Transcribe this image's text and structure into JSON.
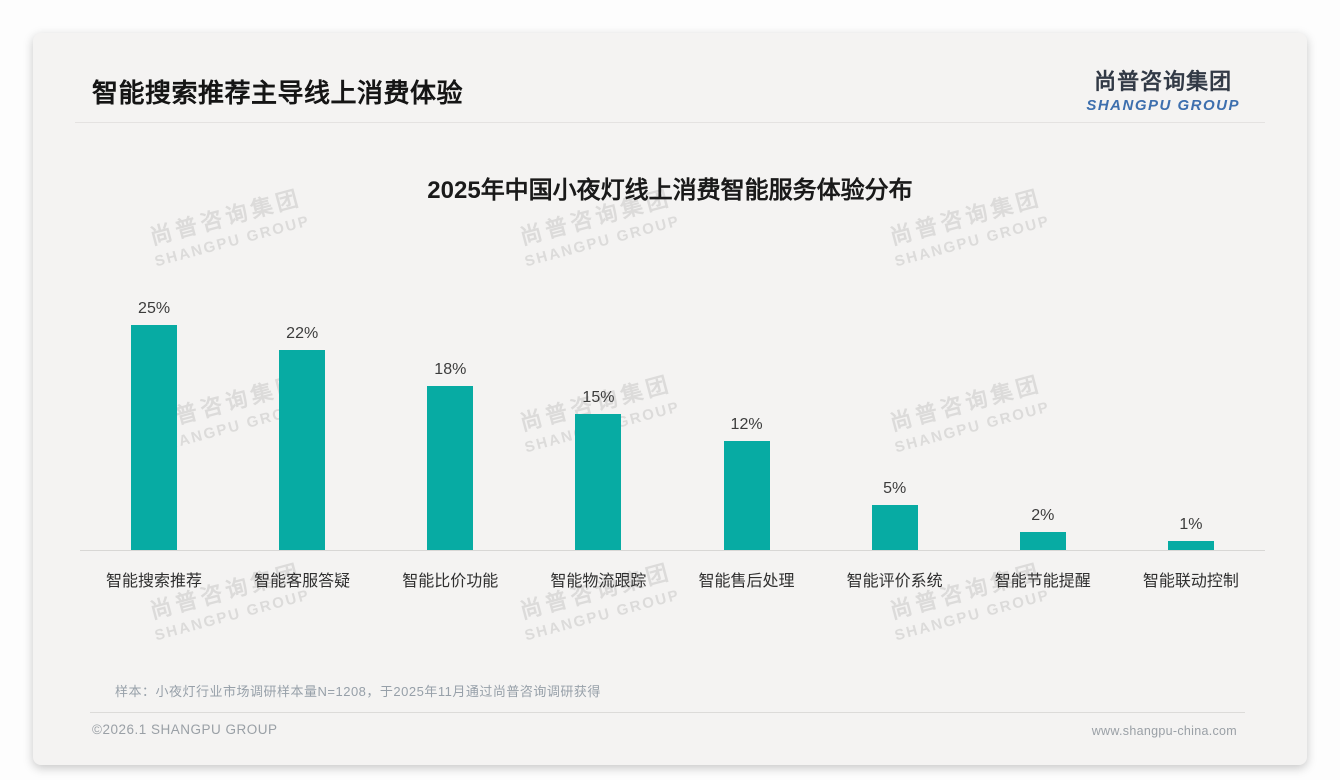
{
  "page": {
    "header": {
      "title": "智能搜索推荐主导线上消费体验"
    },
    "logo": {
      "cn": "尚普咨询集团",
      "en": "SHANGPU GROUP",
      "cn_color": "#323a46",
      "en_color": "#3d6fae"
    },
    "watermark": {
      "line1": "尚普咨询集团",
      "line2": "SHANGPU GROUP"
    },
    "footer": {
      "note": "样本：小夜灯行业市场调研样本量N=1208，于2025年11月通过尚普咨询调研获得",
      "copyright": "©2026.1 SHANGPU GROUP",
      "website": "www.shangpu-china.com"
    }
  },
  "chart_data": {
    "type": "bar",
    "title": "2025年中国小夜灯线上消费智能服务体验分布",
    "categories": [
      "智能搜索推荐",
      "智能客服答疑",
      "智能比价功能",
      "智能物流跟踪",
      "智能售后处理",
      "智能评价系统",
      "智能节能提醒",
      "智能联动控制"
    ],
    "values": [
      25,
      22,
      18,
      15,
      12,
      5,
      2,
      1
    ],
    "unit": "%",
    "data_labels": true,
    "bar_color": "#07aba3",
    "xlabel": "",
    "ylabel": "",
    "ylim": [
      0,
      27.5
    ],
    "grid": false,
    "legend": false
  }
}
